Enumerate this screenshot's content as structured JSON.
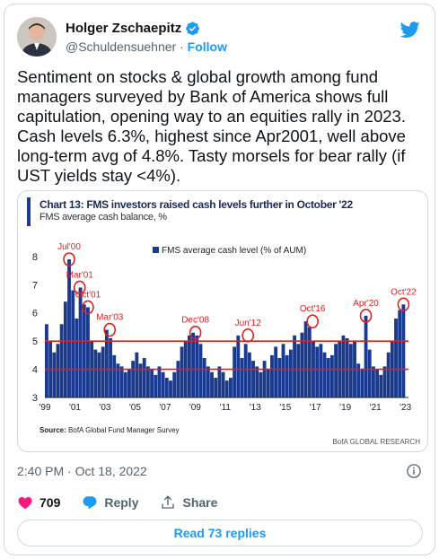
{
  "author": {
    "name": "Holger Zschaepitz",
    "handle": "@Schuldensuehner",
    "separator": "·",
    "follow_label": "Follow"
  },
  "tweet": {
    "text": "Sentiment on stocks & global growth among fund managers surveyed by Bank of America shows full capitulation, opening way to an equities rally in 2023. Cash levels 6.3%, highest since Apr2001, well above long-term avg of 4.8%. Tasty morsels for bear rally (if UST yields stay <4%).",
    "timestamp": "2:40 PM · Oct 18, 2022"
  },
  "actions": {
    "like_count": "709",
    "reply_label": "Reply",
    "share_label": "Share",
    "read_replies_label": "Read 73 replies"
  },
  "colors": {
    "accent": "#1d9bf0",
    "like": "#f91880",
    "bar": "#1a3a8f",
    "reference_line": "#e02020",
    "highlight": "#e02020"
  },
  "icons": [
    "verified-badge-icon",
    "twitter-bird-icon",
    "info-icon",
    "heart-icon",
    "reply-icon",
    "share-icon"
  ],
  "chart_image": {
    "title": "Chart 13: FMS investors raised cash levels further in October '22",
    "subtitle": "FMS average cash balance, %",
    "source_label": "Source:",
    "source_text": "BofA Global Fund Manager Survey",
    "brand": "BofA GLOBAL RESEARCH"
  },
  "chart_data": {
    "type": "bar",
    "title": "Chart 13: FMS investors raised cash levels further in October '22",
    "subtitle": "FMS average cash balance, %",
    "legend": "FMS average cash level (% of AUM)",
    "legend_position": "top-center",
    "ylim": [
      3,
      8.6
    ],
    "yticks": [
      3,
      4,
      5,
      6,
      7,
      8
    ],
    "xlim": [
      1999,
      2023.2
    ],
    "xticks": [
      "'99",
      "'01",
      "'03",
      "'05",
      "'07",
      "'09",
      "'11",
      "'13",
      "'15",
      "'17",
      "'19",
      "'21",
      "'23"
    ],
    "xtick_years": [
      1999,
      2001,
      2003,
      2005,
      2007,
      2009,
      2011,
      2013,
      2015,
      2017,
      2019,
      2021,
      2023
    ],
    "reference_lines": [
      5.0,
      4.0
    ],
    "series": [
      {
        "values": [
          [
            1999.0,
            5.6
          ],
          [
            1999.25,
            5.0
          ],
          [
            1999.5,
            4.6
          ],
          [
            1999.75,
            4.9
          ],
          [
            2000.0,
            5.6
          ],
          [
            2000.25,
            6.4
          ],
          [
            2000.5,
            7.9
          ],
          [
            2000.75,
            6.8
          ],
          [
            2001.0,
            5.8
          ],
          [
            2001.25,
            6.9
          ],
          [
            2001.5,
            6.3
          ],
          [
            2001.75,
            6.2
          ],
          [
            2002.0,
            5.0
          ],
          [
            2002.25,
            4.7
          ],
          [
            2002.5,
            4.6
          ],
          [
            2002.75,
            4.8
          ],
          [
            2003.0,
            5.4
          ],
          [
            2003.25,
            5.1
          ],
          [
            2003.5,
            4.5
          ],
          [
            2003.75,
            4.2
          ],
          [
            2004.0,
            4.1
          ],
          [
            2004.25,
            3.9
          ],
          [
            2004.5,
            4.0
          ],
          [
            2004.75,
            4.3
          ],
          [
            2005.0,
            4.6
          ],
          [
            2005.25,
            4.2
          ],
          [
            2005.5,
            4.4
          ],
          [
            2005.75,
            4.1
          ],
          [
            2006.0,
            4.0
          ],
          [
            2006.25,
            3.8
          ],
          [
            2006.5,
            4.1
          ],
          [
            2006.75,
            3.9
          ],
          [
            2007.0,
            3.7
          ],
          [
            2007.25,
            3.6
          ],
          [
            2007.5,
            3.9
          ],
          [
            2007.75,
            4.3
          ],
          [
            2008.0,
            4.8
          ],
          [
            2008.25,
            5.0
          ],
          [
            2008.5,
            5.2
          ],
          [
            2008.75,
            5.3
          ],
          [
            2009.0,
            5.2
          ],
          [
            2009.25,
            4.9
          ],
          [
            2009.5,
            4.4
          ],
          [
            2009.75,
            4.1
          ],
          [
            2010.0,
            3.9
          ],
          [
            2010.25,
            3.7
          ],
          [
            2010.5,
            4.1
          ],
          [
            2010.75,
            3.9
          ],
          [
            2011.0,
            3.6
          ],
          [
            2011.25,
            3.7
          ],
          [
            2011.5,
            4.8
          ],
          [
            2011.75,
            5.2
          ],
          [
            2012.0,
            4.4
          ],
          [
            2012.25,
            4.9
          ],
          [
            2012.5,
            4.6
          ],
          [
            2012.75,
            4.3
          ],
          [
            2013.0,
            4.1
          ],
          [
            2013.25,
            3.9
          ],
          [
            2013.5,
            4.3
          ],
          [
            2013.75,
            4.0
          ],
          [
            2014.0,
            4.5
          ],
          [
            2014.25,
            4.8
          ],
          [
            2014.5,
            4.4
          ],
          [
            2014.75,
            4.9
          ],
          [
            2015.0,
            4.5
          ],
          [
            2015.25,
            4.7
          ],
          [
            2015.5,
            5.2
          ],
          [
            2015.75,
            4.9
          ],
          [
            2016.0,
            5.3
          ],
          [
            2016.25,
            5.7
          ],
          [
            2016.5,
            5.5
          ],
          [
            2016.75,
            5.0
          ],
          [
            2017.0,
            4.8
          ],
          [
            2017.25,
            4.9
          ],
          [
            2017.5,
            4.6
          ],
          [
            2017.75,
            4.4
          ],
          [
            2018.0,
            4.5
          ],
          [
            2018.25,
            4.9
          ],
          [
            2018.5,
            5.0
          ],
          [
            2018.75,
            5.2
          ],
          [
            2019.0,
            5.1
          ],
          [
            2019.25,
            4.9
          ],
          [
            2019.5,
            5.0
          ],
          [
            2019.75,
            4.2
          ],
          [
            2020.0,
            4.0
          ],
          [
            2020.25,
            5.9
          ],
          [
            2020.5,
            4.7
          ],
          [
            2020.75,
            4.1
          ],
          [
            2021.0,
            4.0
          ],
          [
            2021.25,
            3.8
          ],
          [
            2021.5,
            4.1
          ],
          [
            2021.75,
            4.6
          ],
          [
            2022.0,
            5.0
          ],
          [
            2022.25,
            5.8
          ],
          [
            2022.5,
            6.1
          ],
          [
            2022.75,
            6.3
          ]
        ]
      }
    ],
    "annotations": [
      {
        "label": "Jul'00",
        "x": 2000.5,
        "y": 7.9
      },
      {
        "label": "Mar'01",
        "x": 2001.2,
        "y": 6.9
      },
      {
        "label": "Oct'01",
        "x": 2001.75,
        "y": 6.2
      },
      {
        "label": "Mar'03",
        "x": 2003.2,
        "y": 5.4
      },
      {
        "label": "Dec'08",
        "x": 2008.9,
        "y": 5.3
      },
      {
        "label": "Jun'12",
        "x": 2012.4,
        "y": 5.2
      },
      {
        "label": "Oct'16",
        "x": 2016.7,
        "y": 5.7
      },
      {
        "label": "Apr'20",
        "x": 2020.25,
        "y": 5.9
      },
      {
        "label": "Oct'22",
        "x": 2022.75,
        "y": 6.3
      }
    ]
  }
}
